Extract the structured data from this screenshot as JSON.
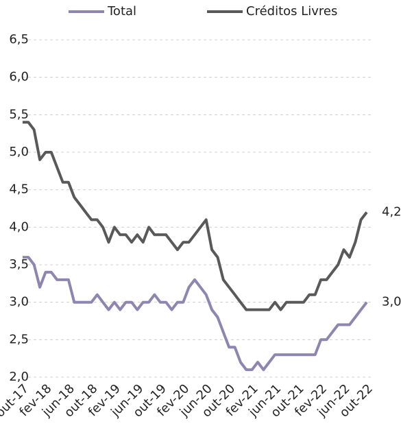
{
  "chart_data": {
    "type": "line",
    "categories": [
      "out-17",
      null,
      null,
      null,
      "fev-18",
      null,
      null,
      null,
      "jun-18",
      null,
      null,
      null,
      "out-18",
      null,
      null,
      null,
      "fev-19",
      null,
      null,
      null,
      "jun-19",
      null,
      null,
      null,
      "out-19",
      null,
      null,
      null,
      "fev-20",
      null,
      null,
      null,
      "jun-20",
      null,
      null,
      null,
      "out-20",
      null,
      null,
      null,
      "fev-21",
      null,
      null,
      null,
      "jun-21",
      null,
      null,
      null,
      "out-21",
      null,
      null,
      null,
      "fev-22",
      null,
      null,
      null,
      "jun-22",
      null,
      null,
      null,
      "out-22"
    ],
    "series": [
      {
        "name": "Total",
        "color": "#8e86b0",
        "end_label": "3,0",
        "values": [
          3.6,
          3.6,
          3.5,
          3.2,
          3.4,
          3.4,
          3.3,
          3.3,
          3.3,
          3.0,
          3.0,
          3.0,
          3.0,
          3.1,
          3.0,
          2.9,
          3.0,
          2.9,
          3.0,
          3.0,
          2.9,
          3.0,
          3.0,
          3.1,
          3.0,
          3.0,
          2.9,
          3.0,
          3.0,
          3.2,
          3.3,
          3.2,
          3.1,
          2.9,
          2.8,
          2.6,
          2.4,
          2.4,
          2.2,
          2.1,
          2.1,
          2.2,
          2.1,
          2.2,
          2.3,
          2.3,
          2.3,
          2.3,
          2.3,
          2.3,
          2.3,
          2.3,
          2.5,
          2.5,
          2.6,
          2.7,
          2.7,
          2.7,
          2.8,
          2.9,
          3.0
        ]
      },
      {
        "name": "Créditos Livres",
        "color": "#595959",
        "end_label": "4,2",
        "values": [
          5.4,
          5.4,
          5.3,
          4.9,
          5.0,
          5.0,
          4.8,
          4.6,
          4.6,
          4.4,
          4.3,
          4.2,
          4.1,
          4.1,
          4.0,
          3.8,
          4.0,
          3.9,
          3.9,
          3.8,
          3.9,
          3.8,
          4.0,
          3.9,
          3.9,
          3.9,
          3.8,
          3.7,
          3.8,
          3.8,
          3.9,
          4.0,
          4.1,
          3.7,
          3.6,
          3.3,
          3.2,
          3.1,
          3.0,
          2.9,
          2.9,
          2.9,
          2.9,
          2.9,
          3.0,
          2.9,
          3.0,
          3.0,
          3.0,
          3.0,
          3.1,
          3.1,
          3.3,
          3.3,
          3.4,
          3.5,
          3.7,
          3.6,
          3.8,
          4.1,
          4.2
        ]
      }
    ],
    "ylim": [
      2.0,
      6.5
    ],
    "yticks": [
      {
        "value": 2.0,
        "label": "2,0"
      },
      {
        "value": 2.5,
        "label": "2,5"
      },
      {
        "value": 3.0,
        "label": "3,0"
      },
      {
        "value": 3.5,
        "label": "3,5"
      },
      {
        "value": 4.0,
        "label": "4,0"
      },
      {
        "value": 4.5,
        "label": "4,5"
      },
      {
        "value": 5.0,
        "label": "5,0"
      },
      {
        "value": 5.5,
        "label": "5,5"
      },
      {
        "value": 6.0,
        "label": "6,0"
      },
      {
        "value": 6.5,
        "label": "6,5"
      }
    ],
    "grid": true,
    "legend": "top"
  }
}
